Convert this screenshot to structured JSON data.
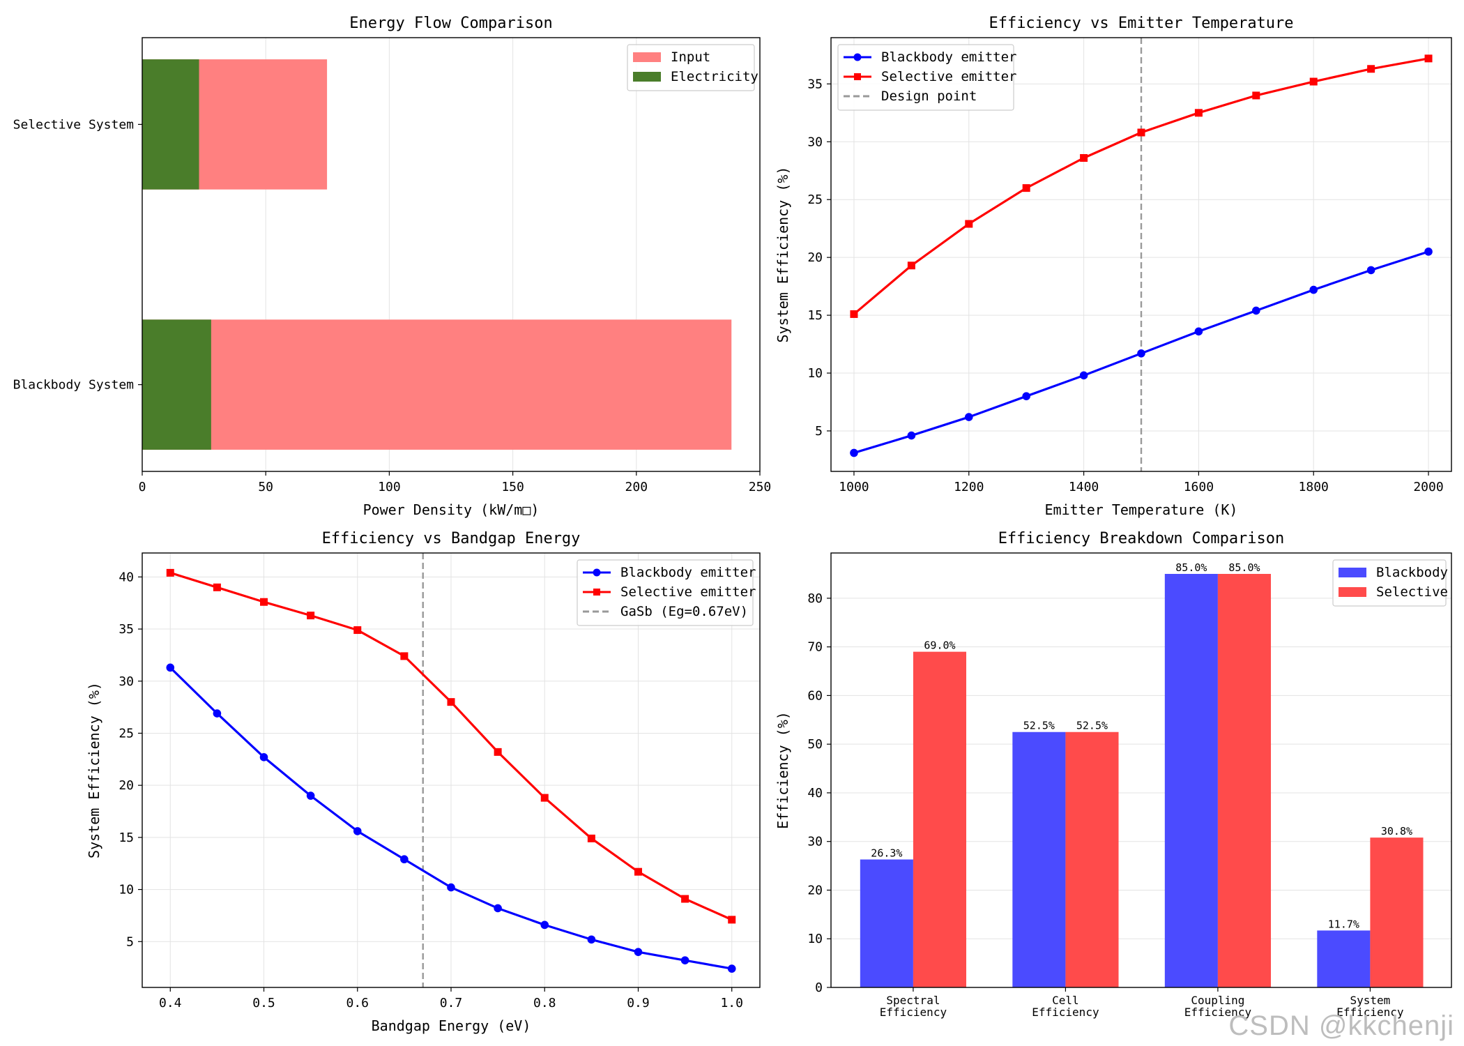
{
  "chart_data": [
    {
      "type": "bar",
      "orientation": "horizontal",
      "title": "Energy Flow Comparison",
      "xlabel": "Power Density (kW/m□)",
      "ylabel": "",
      "xlim": [
        0,
        250
      ],
      "xticks": [
        0,
        50,
        100,
        150,
        200,
        250
      ],
      "categories": [
        "Blackbody System",
        "Selective System"
      ],
      "series": [
        {
          "name": "Input",
          "values": [
            238.5,
            74.8
          ],
          "color": "#ff8080"
        },
        {
          "name": "Electricity",
          "values": [
            27.9,
            23.0
          ],
          "color": "#4a7d2a"
        }
      ],
      "grid": true,
      "legend": "top-right"
    },
    {
      "type": "line",
      "title": "Efficiency vs Emitter Temperature",
      "xlabel": "Emitter Temperature (K)",
      "ylabel": "System Efficiency (%)",
      "xlim": [
        960,
        2040
      ],
      "ylim": [
        1.5,
        39.0
      ],
      "xticks": [
        1000,
        1200,
        1400,
        1600,
        1800,
        2000
      ],
      "yticks": [
        5,
        10,
        15,
        20,
        25,
        30,
        35
      ],
      "x": [
        1000,
        1100,
        1200,
        1300,
        1400,
        1500,
        1600,
        1700,
        1800,
        1900,
        2000
      ],
      "series": [
        {
          "name": "Blackbody emitter",
          "color": "#0000ff",
          "marker": "circle",
          "values": [
            3.1,
            4.6,
            6.2,
            8.0,
            9.8,
            11.7,
            13.6,
            15.4,
            17.2,
            18.9,
            20.5
          ]
        },
        {
          "name": "Selective emitter",
          "color": "#ff0000",
          "marker": "square",
          "values": [
            15.1,
            19.3,
            22.9,
            26.0,
            28.6,
            30.8,
            32.5,
            34.0,
            35.2,
            36.3,
            37.2
          ]
        }
      ],
      "vline": {
        "name": "Design point",
        "x": 1500,
        "color": "#999999"
      },
      "grid": true,
      "legend": "top-left"
    },
    {
      "type": "line",
      "title": "Efficiency vs Bandgap Energy",
      "xlabel": "Bandgap Energy (eV)",
      "ylabel": "System Efficiency (%)",
      "xlim": [
        0.37,
        1.03
      ],
      "ylim": [
        0.6,
        42.3
      ],
      "xticks": [
        0.4,
        0.5,
        0.6,
        0.7,
        0.8,
        0.9,
        1.0
      ],
      "xtick_labels": [
        "0.4",
        "0.5",
        "0.6",
        "0.7",
        "0.8",
        "0.9",
        "1.0"
      ],
      "yticks": [
        5,
        10,
        15,
        20,
        25,
        30,
        35,
        40
      ],
      "x": [
        0.4,
        0.45,
        0.5,
        0.55,
        0.6,
        0.65,
        0.7,
        0.75,
        0.8,
        0.85,
        0.9,
        0.95,
        1.0
      ],
      "series": [
        {
          "name": "Blackbody emitter",
          "color": "#0000ff",
          "marker": "circle",
          "values": [
            31.3,
            26.9,
            22.7,
            19.0,
            15.6,
            12.9,
            10.2,
            8.2,
            6.6,
            5.2,
            4.0,
            3.2,
            2.4
          ]
        },
        {
          "name": "Selective emitter",
          "color": "#ff0000",
          "marker": "square",
          "values": [
            40.4,
            39.0,
            37.6,
            36.3,
            34.9,
            32.4,
            28.0,
            23.2,
            18.8,
            14.9,
            11.7,
            9.1,
            7.1
          ]
        }
      ],
      "vline": {
        "name": "GaSb (Eg=0.67eV)",
        "x": 0.67,
        "color": "#999999"
      },
      "grid": true,
      "legend": "top-right"
    },
    {
      "type": "bar",
      "title": "Efficiency Breakdown Comparison",
      "xlabel": "",
      "ylabel": "Efficiency (%)",
      "ylim": [
        0,
        89.3
      ],
      "yticks": [
        0,
        10,
        20,
        30,
        40,
        50,
        60,
        70,
        80
      ],
      "categories": [
        "Spectral\nEfficiency",
        "Cell\nEfficiency",
        "Coupling\nEfficiency",
        "System\nEfficiency"
      ],
      "series": [
        {
          "name": "Blackbody",
          "color": "#4b4bff",
          "values": [
            26.3,
            52.5,
            85.0,
            11.7
          ],
          "labels": [
            "26.3%",
            "52.5%",
            "85.0%",
            "11.7%"
          ]
        },
        {
          "name": "Selective",
          "color": "#ff4b4b",
          "values": [
            69.0,
            52.5,
            85.0,
            30.8
          ],
          "labels": [
            "69.0%",
            "52.5%",
            "85.0%",
            "30.8%"
          ]
        }
      ],
      "grid": true,
      "legend": "top-right"
    }
  ],
  "watermark": "CSDN @kkchenji"
}
